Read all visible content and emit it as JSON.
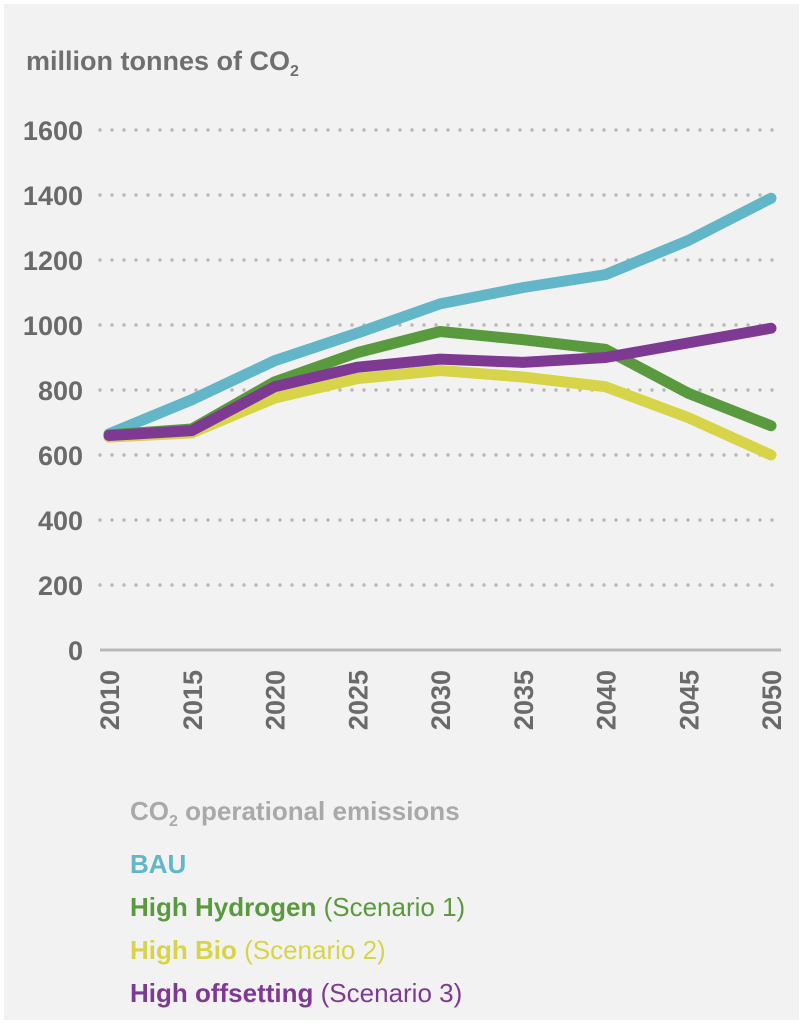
{
  "colors": {
    "background": "#f2f2f2",
    "axis_text": "#6a6a6a",
    "grid": "#b9b9b9",
    "legend_title": "#a9a9a9"
  },
  "chart_data": {
    "type": "line",
    "ylabel": "million tonnes of CO",
    "ylabel_sub": "2",
    "x": [
      "2010",
      "2015",
      "2020",
      "2025",
      "2030",
      "2035",
      "2040",
      "2045",
      "2050"
    ],
    "ylim": [
      0,
      1600
    ],
    "yticks": [
      "0",
      "200",
      "400",
      "600",
      "800",
      "1000",
      "1200",
      "1400",
      "1600"
    ],
    "grid": true,
    "legend_title": "CO",
    "legend_title_sub": "2",
    "legend_title_rest": " operational emissions",
    "series": [
      {
        "name": "BAU",
        "note": "",
        "color": "#62b6c7",
        "values": [
          665,
          770,
          890,
          975,
          1065,
          1115,
          1155,
          1260,
          1390
        ]
      },
      {
        "name": "High Hydrogen",
        "note": " (Scenario 1)",
        "color": "#5a9a3e",
        "values": [
          662,
          680,
          825,
          915,
          980,
          955,
          925,
          790,
          690
        ]
      },
      {
        "name": "High Bio",
        "note": " (Scenario 2)",
        "color": "#d8d44a",
        "values": [
          655,
          668,
          775,
          835,
          860,
          840,
          810,
          715,
          600
        ]
      },
      {
        "name": "High offsetting",
        "note": " (Scenario 3)",
        "color": "#7e3a93",
        "values": [
          660,
          675,
          810,
          870,
          895,
          885,
          900,
          945,
          990
        ]
      }
    ]
  }
}
